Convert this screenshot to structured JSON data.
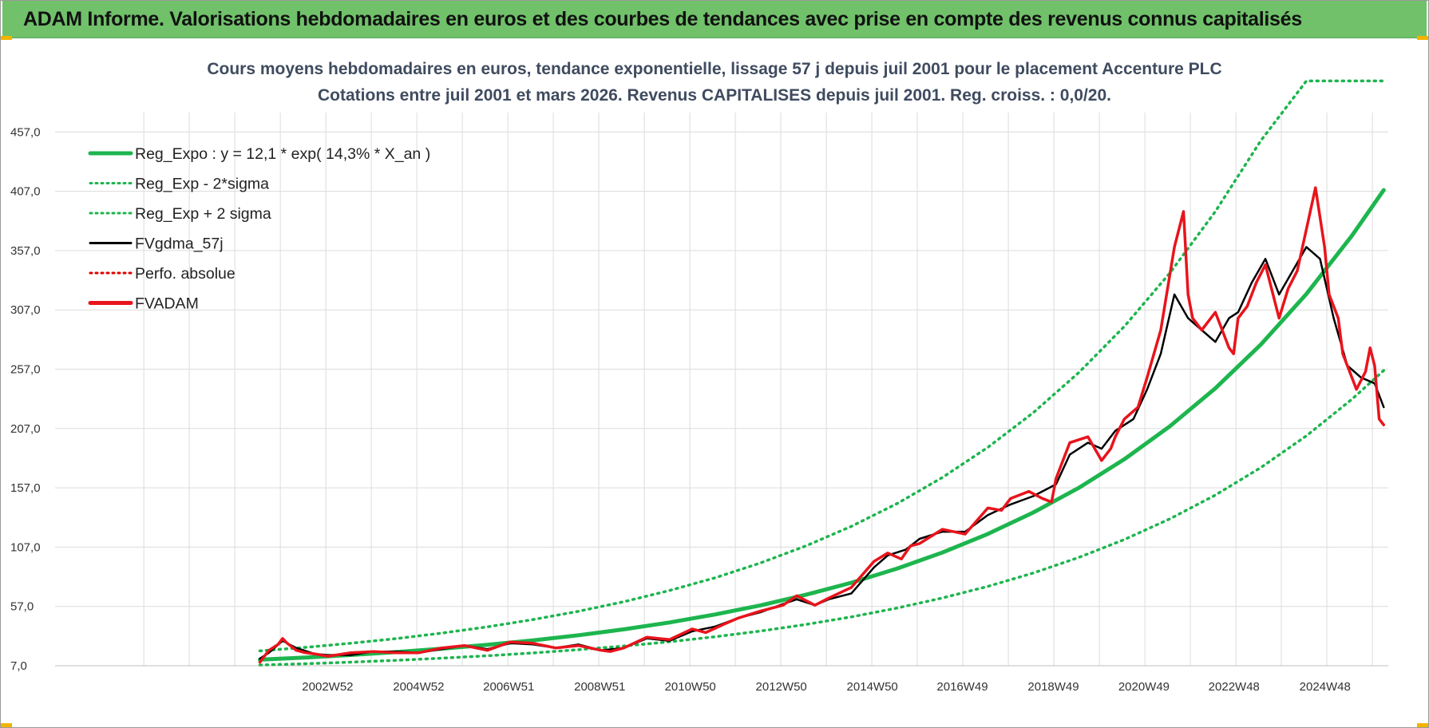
{
  "header": {
    "banner_title": "ADAM Informe. Valorisations hebdomadaires en euros et des courbes de tendances avec prise en compte des revenus connus capitalisés",
    "accent_color": "#70c16a"
  },
  "chart_data": {
    "type": "line",
    "title": "Cours moyens hebdomadaires en euros, tendance exponentielle, lissage 57 j depuis juil 2001 pour le placement Accenture PLC",
    "subtitle": "Cotations entre juil 2001 et mars 2026. Revenus CAPITALISES depuis juil 2001. Reg. croiss. : 0,0/20.",
    "xlabel": "",
    "ylabel": "",
    "xlim": [
      1997.0,
      2026.3
    ],
    "ylim": [
      7.0,
      507.0
    ],
    "y_ticks": [
      "457,0",
      "407,0",
      "357,0",
      "307,0",
      "257,0",
      "207,0",
      "157,0",
      "107,0",
      "57,0",
      "7,0"
    ],
    "y_tick_values": [
      457,
      407,
      357,
      307,
      257,
      207,
      157,
      107,
      57,
      7
    ],
    "x_ticks": [
      "2002W52",
      "2004W52",
      "2006W51",
      "2008W51",
      "2010W50",
      "2012W50",
      "2014W50",
      "2016W49",
      "2018W49",
      "2020W49",
      "2022W48",
      "2024W48"
    ],
    "x_tick_values": [
      2002.99,
      2004.99,
      2006.97,
      2008.97,
      2010.96,
      2012.96,
      2014.96,
      2016.94,
      2018.94,
      2020.93,
      2022.91,
      2024.91
    ],
    "grid": true,
    "legend_position": "top-left",
    "legend": [
      {
        "label": "Reg_Expo : y = 12,1 * exp( 14,3% *  X_an )",
        "color": "#1db54e",
        "style": "solid-thick"
      },
      {
        "label": "Reg_Exp - 2*sigma",
        "color": "#1db54e",
        "style": "dotted"
      },
      {
        "label": "Reg_Exp + 2 sigma",
        "color": "#1db54e",
        "style": "dotted"
      },
      {
        "label": "FVgdma_57j",
        "color": "#000000",
        "style": "solid"
      },
      {
        "label": "Perfo. absolue",
        "color": "#e00000",
        "style": "dotted"
      },
      {
        "label": "FVADAM",
        "color": "#e8141c",
        "style": "solid-thick"
      }
    ],
    "series": [
      {
        "name": "Reg_Expo",
        "color": "#1db54e",
        "x": [
          2001.5,
          2002.5,
          2003.5,
          2004.5,
          2005.5,
          2006.5,
          2007.5,
          2008.5,
          2009.5,
          2010.5,
          2011.5,
          2012.5,
          2013.5,
          2014.5,
          2015.5,
          2016.5,
          2017.5,
          2018.5,
          2019.5,
          2020.5,
          2021.5,
          2022.5,
          2023.5,
          2024.5,
          2025.5,
          2026.2
        ],
        "values": [
          12.1,
          13.9,
          16.1,
          18.5,
          21.4,
          24.6,
          28.4,
          32.7,
          37.7,
          43.5,
          50.2,
          57.9,
          66.8,
          77.0,
          88.8,
          102.4,
          118.1,
          136.2,
          157.0,
          181.1,
          208.9,
          240.9,
          277.8,
          320.4,
          369.5,
          408.0
        ]
      },
      {
        "name": "Reg_Exp - 2*sigma",
        "color": "#1db54e",
        "x": [
          2001.5,
          2002.5,
          2003.5,
          2004.5,
          2005.5,
          2006.5,
          2007.5,
          2008.5,
          2009.5,
          2010.5,
          2011.5,
          2012.5,
          2013.5,
          2014.5,
          2015.5,
          2016.5,
          2017.5,
          2018.5,
          2019.5,
          2020.5,
          2021.5,
          2022.5,
          2023.5,
          2024.5,
          2025.5,
          2026.2
        ],
        "values": [
          7.6,
          8.7,
          10.0,
          11.6,
          13.4,
          15.4,
          17.8,
          20.5,
          23.6,
          27.2,
          31.4,
          36.2,
          41.8,
          48.2,
          55.6,
          64.1,
          73.9,
          85.2,
          98.3,
          113.4,
          130.8,
          150.9,
          174.1,
          200.8,
          231.6,
          255.9
        ]
      },
      {
        "name": "Reg_Exp + 2 sigma",
        "color": "#1db54e",
        "x": [
          2001.5,
          2002.5,
          2003.5,
          2004.5,
          2005.5,
          2006.5,
          2007.5,
          2008.5,
          2009.5,
          2010.5,
          2011.5,
          2012.5,
          2013.5,
          2014.5,
          2015.5,
          2016.5,
          2017.5,
          2018.5,
          2019.5,
          2020.5,
          2021.5,
          2022.5,
          2023.5,
          2024.5,
          2025.5,
          2026.2
        ],
        "values": [
          19.5,
          22.5,
          26.0,
          29.9,
          34.5,
          39.8,
          45.9,
          52.9,
          61.0,
          70.4,
          81.1,
          93.6,
          108.0,
          124.5,
          143.6,
          165.7,
          191.1,
          220.4,
          254.2,
          293.1,
          338.1,
          390.0,
          449.7,
          500.0,
          500.0,
          500.0
        ]
      },
      {
        "name": "FVgdma_57j",
        "color": "#000000",
        "x": [
          2001.5,
          2001.7,
          2002.0,
          2002.3,
          2002.7,
          2003.0,
          2003.5,
          2004.0,
          2004.5,
          2005.0,
          2005.5,
          2006.0,
          2006.5,
          2007.0,
          2007.5,
          2008.0,
          2008.5,
          2009.0,
          2009.5,
          2010.0,
          2010.5,
          2011.0,
          2011.5,
          2012.0,
          2012.5,
          2013.0,
          2013.3,
          2013.7,
          2014.0,
          2014.5,
          2015.0,
          2015.3,
          2015.7,
          2016.0,
          2016.5,
          2017.0,
          2017.5,
          2018.0,
          2018.5,
          2019.0,
          2019.3,
          2019.7,
          2020.0,
          2020.3,
          2020.7,
          2021.0,
          2021.3,
          2021.6,
          2021.9,
          2022.2,
          2022.5,
          2022.8,
          2023.0,
          2023.3,
          2023.6,
          2023.9,
          2024.2,
          2024.5,
          2024.8,
          2025.1,
          2025.4,
          2025.7,
          2026.0,
          2026.2
        ],
        "values": [
          13,
          18,
          28,
          22,
          17,
          16,
          16,
          19,
          19,
          18,
          21,
          24,
          21,
          26,
          25,
          22,
          25,
          20,
          22,
          30,
          28,
          36,
          40,
          47,
          52,
          59,
          63,
          58,
          63,
          68,
          90,
          100,
          105,
          114,
          120,
          120,
          134,
          143,
          150,
          160,
          185,
          195,
          190,
          205,
          215,
          240,
          270,
          320,
          300,
          290,
          280,
          300,
          305,
          330,
          350,
          320,
          340,
          360,
          350,
          300,
          260,
          250,
          245,
          225
        ]
      },
      {
        "name": "FVADAM",
        "color": "#e8141c",
        "x": [
          2001.5,
          2001.6,
          2001.7,
          2001.9,
          2002.0,
          2002.1,
          2002.3,
          2002.5,
          2002.7,
          2003.0,
          2003.5,
          2004.0,
          2004.5,
          2005.0,
          2005.5,
          2006.0,
          2006.5,
          2007.0,
          2007.5,
          2008.0,
          2008.5,
          2009.0,
          2009.2,
          2009.5,
          2010.0,
          2010.5,
          2011.0,
          2011.3,
          2011.7,
          2012.0,
          2012.5,
          2013.0,
          2013.3,
          2013.5,
          2013.7,
          2014.0,
          2014.5,
          2015.0,
          2015.3,
          2015.6,
          2015.8,
          2016.0,
          2016.5,
          2017.0,
          2017.5,
          2017.8,
          2018.0,
          2018.4,
          2018.7,
          2018.9,
          2019.0,
          2019.3,
          2019.7,
          2020.0,
          2020.2,
          2020.3,
          2020.5,
          2020.8,
          2021.0,
          2021.3,
          2021.6,
          2021.8,
          2021.9,
          2022.0,
          2022.2,
          2022.5,
          2022.8,
          2022.9,
          2023.0,
          2023.2,
          2023.4,
          2023.6,
          2023.9,
          2024.1,
          2024.3,
          2024.5,
          2024.7,
          2024.9,
          2025.0,
          2025.2,
          2025.3,
          2025.5,
          2025.6,
          2025.8,
          2025.9,
          2026.0,
          2026.1,
          2026.2
        ],
        "values": [
          10,
          15,
          20,
          25,
          30,
          26,
          20,
          18,
          17,
          15,
          18,
          19,
          18,
          18,
          22,
          24,
          20,
          27,
          26,
          22,
          24,
          20,
          19,
          22,
          31,
          29,
          38,
          35,
          42,
          47,
          53,
          58,
          66,
          62,
          58,
          64,
          73,
          95,
          102,
          97,
          108,
          110,
          122,
          118,
          140,
          138,
          148,
          154,
          148,
          145,
          165,
          195,
          200,
          180,
          190,
          200,
          215,
          225,
          250,
          290,
          360,
          390,
          320,
          300,
          290,
          305,
          275,
          270,
          300,
          310,
          330,
          345,
          300,
          325,
          340,
          375,
          410,
          360,
          320,
          300,
          270,
          250,
          240,
          255,
          275,
          260,
          215,
          210
        ]
      }
    ]
  }
}
